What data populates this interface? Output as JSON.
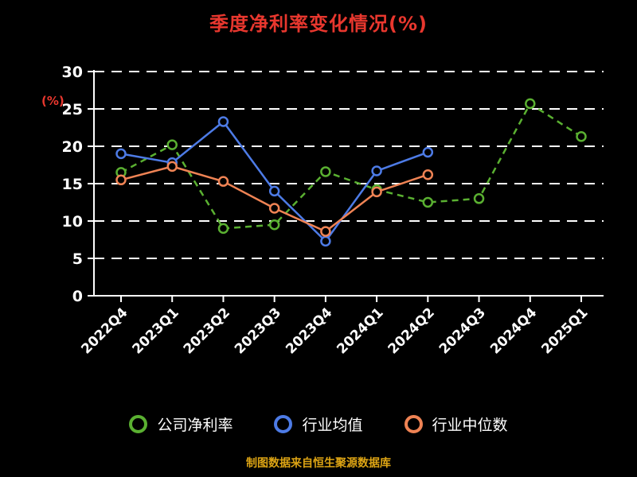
{
  "title": "季度净利率变化情况(%)",
  "ylabel": "(%)",
  "footer": "制图数据来自恒生聚源数据库",
  "colors": {
    "background": "#000000",
    "title": "#e8372e",
    "ylabel": "#e8372e",
    "footer": "#dda414",
    "axis": "#ffffff",
    "tick_label": "#ffffff",
    "grid": "#ffffff"
  },
  "chart_data": {
    "type": "line",
    "title": "季度净利率变化情况(%)",
    "xlabel": "",
    "ylabel": "(%)",
    "ylim": [
      0,
      30
    ],
    "yticks": [
      0,
      5,
      10,
      15,
      20,
      25,
      30
    ],
    "grid": true,
    "grid_style": "dashed",
    "legend_position": "bottom",
    "categories": [
      "2022Q4",
      "2023Q1",
      "2023Q2",
      "2023Q3",
      "2023Q4",
      "2024Q1",
      "2024Q2",
      "2024Q3",
      "2024Q4",
      "2025Q1"
    ],
    "series": [
      {
        "name": "公司净利率",
        "color": "#5ab031",
        "line_style": "dashed",
        "values": [
          16.5,
          20.2,
          9.0,
          9.5,
          16.6,
          14.2,
          12.5,
          13.0,
          25.7,
          21.3
        ]
      },
      {
        "name": "行业均值",
        "color": "#4d7be6",
        "line_style": "solid",
        "values": [
          19.0,
          17.8,
          23.3,
          14.0,
          7.3,
          16.7,
          19.2,
          null,
          null,
          null
        ]
      },
      {
        "name": "行业中位数",
        "color": "#ef8354",
        "line_style": "solid",
        "values": [
          15.5,
          17.3,
          15.3,
          11.7,
          8.6,
          13.9,
          16.2,
          null,
          null,
          null
        ]
      }
    ]
  }
}
